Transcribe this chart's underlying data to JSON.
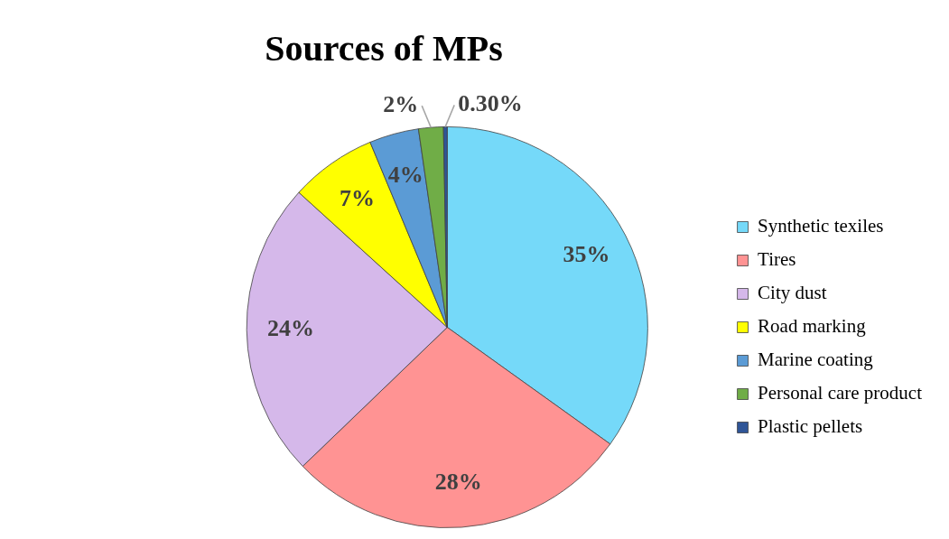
{
  "chart_data": {
    "type": "pie",
    "title": "Sources of MPs",
    "categories": [
      "Synthetic texiles",
      "Tires",
      "City dust",
      "Road marking",
      "Marine coating",
      "Personal care product",
      "Plastic pellets"
    ],
    "values": [
      35,
      28,
      24,
      7,
      4,
      2,
      0.3
    ],
    "colors": [
      "#75d9f9",
      "#ff9393",
      "#d5b8ea",
      "#ffff00",
      "#5b9bd5",
      "#70ad47",
      "#2f5597"
    ],
    "value_labels": [
      "35%",
      "28%",
      "24%",
      "7%",
      "4%",
      "2%",
      "0.30%"
    ],
    "legend": "right"
  }
}
